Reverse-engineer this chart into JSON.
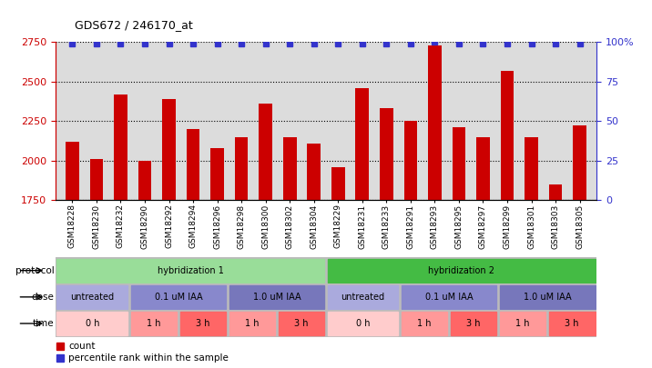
{
  "title": "GDS672 / 246170_at",
  "samples": [
    "GSM18228",
    "GSM18230",
    "GSM18232",
    "GSM18290",
    "GSM18292",
    "GSM18294",
    "GSM18296",
    "GSM18298",
    "GSM18300",
    "GSM18302",
    "GSM18304",
    "GSM18229",
    "GSM18231",
    "GSM18233",
    "GSM18291",
    "GSM18293",
    "GSM18295",
    "GSM18297",
    "GSM18299",
    "GSM18301",
    "GSM18303",
    "GSM18305"
  ],
  "counts": [
    2120,
    2010,
    2420,
    2000,
    2390,
    2200,
    2080,
    2150,
    2360,
    2150,
    2110,
    1960,
    2460,
    2330,
    2250,
    2730,
    2210,
    2150,
    2570,
    2150,
    1850,
    2220
  ],
  "percentile_ranks": [
    99,
    99,
    99,
    99,
    99,
    99,
    99,
    99,
    99,
    99,
    99,
    99,
    99,
    99,
    99,
    100,
    99,
    99,
    99,
    99,
    99,
    99
  ],
  "ylim_left": [
    1750,
    2750
  ],
  "ylim_right": [
    0,
    100
  ],
  "yticks_left": [
    1750,
    2000,
    2250,
    2500,
    2750
  ],
  "yticks_right": [
    0,
    25,
    50,
    75,
    100
  ],
  "bar_color": "#CC0000",
  "dot_color": "#3333CC",
  "bg_color": "#DCDCDC",
  "protocol_colors": [
    "#99DD99",
    "#44BB44"
  ],
  "dose_colors": [
    "#AAAADD",
    "#8888CC",
    "#7777BB"
  ],
  "time_colors_0h": "#FFCCCC",
  "time_colors_1h": "#FF9999",
  "time_colors_3h": "#FF6666",
  "protocol_row": {
    "label": "protocol",
    "groups": [
      {
        "text": "hybridization 1",
        "start": 0,
        "end": 11,
        "color": "#99DD99"
      },
      {
        "text": "hybridization 2",
        "start": 11,
        "end": 22,
        "color": "#44BB44"
      }
    ]
  },
  "dose_row": {
    "label": "dose",
    "groups": [
      {
        "text": "untreated",
        "start": 0,
        "end": 3,
        "color": "#AAAADD"
      },
      {
        "text": "0.1 uM IAA",
        "start": 3,
        "end": 7,
        "color": "#8888CC"
      },
      {
        "text": "1.0 uM IAA",
        "start": 7,
        "end": 11,
        "color": "#7777BB"
      },
      {
        "text": "untreated",
        "start": 11,
        "end": 14,
        "color": "#AAAADD"
      },
      {
        "text": "0.1 uM IAA",
        "start": 14,
        "end": 18,
        "color": "#8888CC"
      },
      {
        "text": "1.0 uM IAA",
        "start": 18,
        "end": 22,
        "color": "#7777BB"
      }
    ]
  },
  "time_row": {
    "label": "time",
    "groups": [
      {
        "text": "0 h",
        "start": 0,
        "end": 3,
        "color": "#FFCCCC"
      },
      {
        "text": "1 h",
        "start": 3,
        "end": 5,
        "color": "#FF9999"
      },
      {
        "text": "3 h",
        "start": 5,
        "end": 7,
        "color": "#FF6666"
      },
      {
        "text": "1 h",
        "start": 7,
        "end": 9,
        "color": "#FF9999"
      },
      {
        "text": "3 h",
        "start": 9,
        "end": 11,
        "color": "#FF6666"
      },
      {
        "text": "0 h",
        "start": 11,
        "end": 14,
        "color": "#FFCCCC"
      },
      {
        "text": "1 h",
        "start": 14,
        "end": 16,
        "color": "#FF9999"
      },
      {
        "text": "3 h",
        "start": 16,
        "end": 18,
        "color": "#FF6666"
      },
      {
        "text": "1 h",
        "start": 18,
        "end": 20,
        "color": "#FF9999"
      },
      {
        "text": "3 h",
        "start": 20,
        "end": 22,
        "color": "#FF6666"
      }
    ]
  }
}
